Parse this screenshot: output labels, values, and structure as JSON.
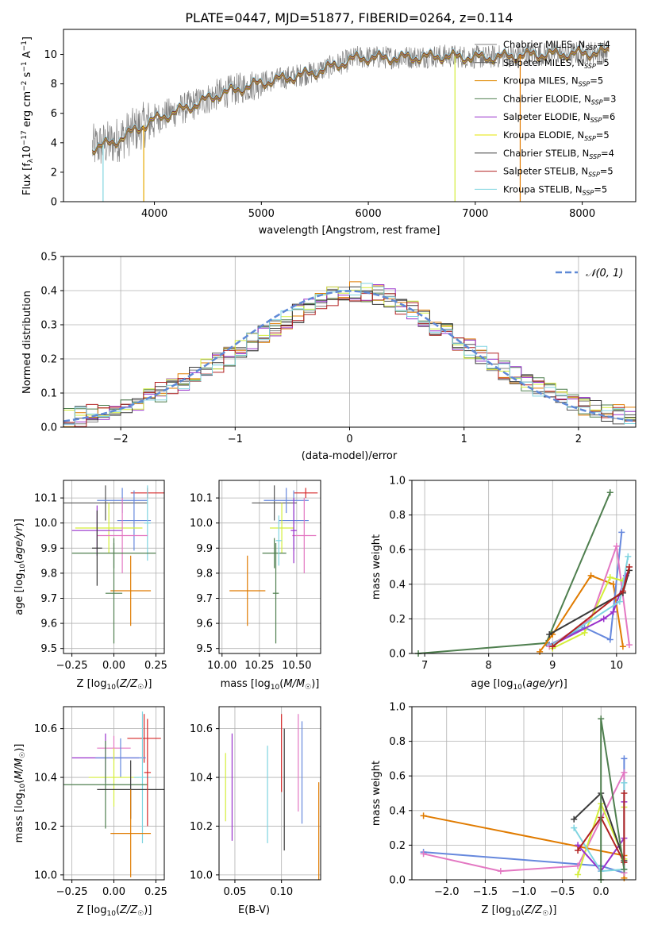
{
  "chart_data": [
    {
      "id": "spectrum",
      "type": "line",
      "title": "PLATE=0447, MJD=51877, FIBERID=0264, z=0.114",
      "xlabel": "wavelength [Angstrom, rest frame]",
      "ylabel": "Flux [f_λ 10^-17 erg cm^-2 s^-1 A^-1]",
      "xlim": [
        3150,
        8500
      ],
      "ylim": [
        0,
        11.7
      ],
      "xticks": [
        "4000",
        "5000",
        "6000",
        "7000",
        "8000"
      ],
      "yticks": [
        "0",
        "2",
        "4",
        "6",
        "8",
        "10"
      ],
      "grid": false,
      "legend_position": "right",
      "data_envelope": {
        "x": [
          3420,
          3600,
          4000,
          4300,
          4600,
          5000,
          5500,
          5900,
          6300,
          6700,
          7100,
          7500,
          8000,
          8250
        ],
        "y": [
          3.7,
          4.0,
          5.6,
          6.4,
          7.3,
          8.1,
          8.8,
          9.8,
          9.8,
          9.9,
          9.8,
          10.0,
          10.1,
          10.2
        ]
      },
      "series": [
        {
          "name": "Chabrier MILES, N_SSP=4",
          "color": "#808080"
        },
        {
          "name": "Salpeter MILES, N_SSP=5",
          "color": "#555555"
        },
        {
          "name": "Kroupa MILES, N_SSP=5",
          "color": "#e08a00"
        },
        {
          "name": "Chabrier ELODIE, N_SSP=3",
          "color": "#4f7f4f"
        },
        {
          "name": "Salpeter ELODIE, N_SSP=6",
          "color": "#9932cc"
        },
        {
          "name": "Kroupa ELODIE, N_SSP=5",
          "color": "#e6e600"
        },
        {
          "name": "Chabrier STELIB, N_SSP=4",
          "color": "#3a3a3a"
        },
        {
          "name": "Salpeter STELIB, N_SSP=5",
          "color": "#b22222"
        },
        {
          "name": "Kroupa STELIB, N_SSP=5",
          "color": "#7fd4e0"
        }
      ]
    },
    {
      "id": "residuals",
      "type": "histogram",
      "xlabel": "(data-model)/error",
      "ylabel": "Normed distribution",
      "xlim": [
        -2.5,
        2.5
      ],
      "ylim": [
        0,
        0.5
      ],
      "xticks": [
        "−2",
        "−1",
        "0",
        "1",
        "2"
      ],
      "yticks": [
        "0.0",
        "0.1",
        "0.2",
        "0.3",
        "0.4",
        "0.5"
      ],
      "grid": true,
      "legend_position": "top-right",
      "legend": "𝒩(0, 1)",
      "bin_edges_start": -2.5,
      "bin_width": 0.1,
      "reference_values": [
        0.027,
        0.031,
        0.037,
        0.045,
        0.053,
        0.063,
        0.075,
        0.088,
        0.102,
        0.117,
        0.134,
        0.151,
        0.17,
        0.189,
        0.209,
        0.23,
        0.251,
        0.272,
        0.293,
        0.313,
        0.332,
        0.35,
        0.367,
        0.381,
        0.392,
        0.397,
        0.396,
        0.389,
        0.377,
        0.361,
        0.342,
        0.321,
        0.299,
        0.277,
        0.254,
        0.232,
        0.21,
        0.189,
        0.169,
        0.15,
        0.133,
        0.116,
        0.101,
        0.087,
        0.074,
        0.063,
        0.053,
        0.044,
        0.036,
        0.03
      ],
      "series_colors": [
        "#808080",
        "#555555",
        "#e07b00",
        "#4f7f4f",
        "#9932cc",
        "#d4ee3a",
        "#3a3a3a",
        "#b22222",
        "#7fd4e0"
      ]
    },
    {
      "id": "age_vs_Z",
      "type": "errorbar",
      "xlabel": "Z [log10(Z/Z☉)]",
      "ylabel": "age  [log10(age/yr)]",
      "xlim": [
        -0.3,
        0.3
      ],
      "ylim": [
        9.48,
        10.17
      ],
      "xticks": [
        "−0.25",
        "0.00",
        "0.25"
      ],
      "yticks": [
        "9.5",
        "9.6",
        "9.7",
        "9.8",
        "9.9",
        "10.0",
        "10.1"
      ],
      "grid": true,
      "points": [
        {
          "x": -0.05,
          "y": 10.08,
          "xerr": 0.25,
          "yerr": 0.07,
          "color": "#555555"
        },
        {
          "x": 0.2,
          "y": 10.12,
          "xerr": 0.1,
          "yerr": 0.02,
          "color": "#d62728"
        },
        {
          "x": 0.05,
          "y": 10.09,
          "xerr": 0.15,
          "yerr": 0.05,
          "color": "#6688dd"
        },
        {
          "x": 0.12,
          "y": 10.01,
          "xerr": 0.1,
          "yerr": 0.12,
          "color": "#6688dd"
        },
        {
          "x": -0.03,
          "y": 9.98,
          "xerr": 0.2,
          "yerr": 0.1,
          "color": "#d4ee3a"
        },
        {
          "x": 0.2,
          "y": 10.0,
          "xerr": 0.02,
          "yerr": 0.15,
          "color": "#7fd4e0"
        },
        {
          "x": -0.1,
          "y": 9.97,
          "xerr": 0.15,
          "yerr": 0.1,
          "color": "#9932cc"
        },
        {
          "x": 0.05,
          "y": 9.95,
          "xerr": 0.15,
          "yerr": 0.15,
          "color": "#e377c2"
        },
        {
          "x": 0.0,
          "y": 9.88,
          "xerr": 0.25,
          "yerr": 0.06,
          "color": "#4f7f4f"
        },
        {
          "x": 0.1,
          "y": 9.73,
          "xerr": 0.12,
          "yerr": 0.14,
          "color": "#e07b00"
        },
        {
          "x": -0.1,
          "y": 9.9,
          "xerr": 0.03,
          "yerr": 0.15,
          "color": "#3a3a3a"
        },
        {
          "x": 0.0,
          "y": 9.72,
          "xerr": 0.05,
          "yerr": 0.2,
          "color": "#4f7f4f"
        }
      ]
    },
    {
      "id": "age_vs_mass",
      "type": "errorbar",
      "xlabel": "mass [log10(M/M☉)]",
      "ylabel": "",
      "xlim": [
        9.98,
        10.66
      ],
      "ylim": [
        9.48,
        10.17
      ],
      "xticks": [
        "10.00",
        "10.25",
        "10.50"
      ],
      "yticks": [
        "9.5",
        "9.6",
        "9.7",
        "9.8",
        "9.9",
        "10.0",
        "10.1"
      ],
      "grid": true,
      "points": [
        {
          "x": 10.35,
          "y": 10.08,
          "xerr": 0.15,
          "yerr": 0.07,
          "color": "#555555"
        },
        {
          "x": 10.56,
          "y": 10.12,
          "xerr": 0.08,
          "yerr": 0.02,
          "color": "#d62728"
        },
        {
          "x": 10.43,
          "y": 10.09,
          "xerr": 0.15,
          "yerr": 0.05,
          "color": "#6688dd"
        },
        {
          "x": 10.48,
          "y": 10.01,
          "xerr": 0.1,
          "yerr": 0.12,
          "color": "#6688dd"
        },
        {
          "x": 10.4,
          "y": 9.98,
          "xerr": 0.08,
          "yerr": 0.1,
          "color": "#d4ee3a"
        },
        {
          "x": 10.55,
          "y": 9.95,
          "xerr": 0.08,
          "yerr": 0.15,
          "color": "#e377c2"
        },
        {
          "x": 10.48,
          "y": 9.97,
          "xerr": 0.02,
          "yerr": 0.13,
          "color": "#9932cc"
        },
        {
          "x": 10.35,
          "y": 9.88,
          "xerr": 0.08,
          "yerr": 0.06,
          "color": "#4f7f4f"
        },
        {
          "x": 10.17,
          "y": 9.73,
          "xerr": 0.12,
          "yerr": 0.14,
          "color": "#e07b00"
        },
        {
          "x": 10.38,
          "y": 9.93,
          "xerr": 0.02,
          "yerr": 0.1,
          "color": "#7fd4e0"
        },
        {
          "x": 10.36,
          "y": 9.72,
          "xerr": 0.02,
          "yerr": 0.2,
          "color": "#4f7f4f"
        }
      ]
    },
    {
      "id": "massweight_vs_age",
      "type": "line",
      "xlabel": "age  [log10(age/yr)]",
      "ylabel": "mass weight",
      "xlim": [
        6.8,
        10.3
      ],
      "ylim": [
        0,
        1
      ],
      "xticks": [
        "7",
        "8",
        "9",
        "10"
      ],
      "yticks": [
        "0.0",
        "0.2",
        "0.4",
        "0.6",
        "0.8",
        "1.0"
      ],
      "grid": true,
      "series": [
        {
          "color": "#4f7f4f",
          "x": [
            6.9,
            8.9,
            9.9
          ],
          "y": [
            0.0,
            0.06,
            0.93
          ]
        },
        {
          "color": "#e07b00",
          "x": [
            8.8,
            9.0,
            9.6,
            9.95,
            10.1
          ],
          "y": [
            0.01,
            0.11,
            0.45,
            0.4,
            0.04
          ]
        },
        {
          "color": "#6688dd",
          "x": [
            8.95,
            9.5,
            9.9,
            10.08
          ],
          "y": [
            0.05,
            0.15,
            0.08,
            0.7
          ]
        },
        {
          "color": "#e377c2",
          "x": [
            8.95,
            9.6,
            10.0,
            10.2
          ],
          "y": [
            0.04,
            0.2,
            0.62,
            0.05
          ]
        },
        {
          "color": "#d4ee3a",
          "x": [
            9.0,
            9.5,
            9.9,
            10.1
          ],
          "y": [
            0.03,
            0.12,
            0.44,
            0.42
          ]
        },
        {
          "color": "#9932cc",
          "x": [
            9.0,
            9.8,
            9.95,
            10.15
          ],
          "y": [
            0.05,
            0.2,
            0.24,
            0.45
          ]
        },
        {
          "color": "#7fd4e0",
          "x": [
            9.0,
            10.05,
            10.18
          ],
          "y": [
            0.05,
            0.3,
            0.56
          ]
        },
        {
          "color": "#3a3a3a",
          "x": [
            8.95,
            10.1,
            10.2
          ],
          "y": [
            0.11,
            0.35,
            0.48
          ]
        },
        {
          "color": "#b22222",
          "x": [
            9.0,
            10.1,
            10.2
          ],
          "y": [
            0.04,
            0.36,
            0.5
          ]
        }
      ]
    },
    {
      "id": "mass_vs_Z",
      "type": "errorbar",
      "xlabel": "Z [log10(Z/Z☉)]",
      "ylabel": "mass [log10(M/M☉)]",
      "xlim": [
        -0.3,
        0.3
      ],
      "ylim": [
        9.98,
        10.69
      ],
      "xticks": [
        "−0.25",
        "0.00",
        "0.25"
      ],
      "yticks": [
        "10.0",
        "10.2",
        "10.4",
        "10.6"
      ],
      "grid": true,
      "points": [
        {
          "x": 0.18,
          "y": 10.56,
          "xerr": 0.1,
          "yerr": 0.1,
          "color": "#d62728"
        },
        {
          "x": 0.0,
          "y": 10.52,
          "xerr": 0.1,
          "yerr": 0.05,
          "color": "#e377c2"
        },
        {
          "x": -0.05,
          "y": 10.48,
          "xerr": 0.2,
          "yerr": 0.1,
          "color": "#9932cc"
        },
        {
          "x": 0.04,
          "y": 10.48,
          "xerr": 0.15,
          "yerr": 0.08,
          "color": "#6688dd"
        },
        {
          "x": 0.0,
          "y": 10.4,
          "xerr": 0.15,
          "yerr": 0.12,
          "color": "#d4ee3a"
        },
        {
          "x": 0.17,
          "y": 10.4,
          "xerr": 0.05,
          "yerr": 0.27,
          "color": "#7fd4e0"
        },
        {
          "x": -0.05,
          "y": 10.37,
          "xerr": 0.25,
          "yerr": 0.18,
          "color": "#4f7f4f"
        },
        {
          "x": 0.1,
          "y": 10.35,
          "xerr": 0.2,
          "yerr": 0.12,
          "color": "#3a3a3a"
        },
        {
          "x": 0.1,
          "y": 10.17,
          "xerr": 0.12,
          "yerr": 0.18,
          "color": "#e07b00"
        },
        {
          "x": 0.2,
          "y": 10.42,
          "xerr": 0.02,
          "yerr": 0.22,
          "color": "#d62728"
        }
      ]
    },
    {
      "id": "mass_vs_ebv",
      "type": "errorbar",
      "xlabel": "E(B-V)",
      "ylabel": "",
      "xlim": [
        0.033,
        0.142
      ],
      "ylim": [
        9.98,
        10.69
      ],
      "xticks": [
        "0.05",
        "0.10"
      ],
      "yticks": [
        "10.0",
        "10.2",
        "10.4",
        "10.6"
      ],
      "grid": true,
      "points": [
        {
          "x": 0.04,
          "y": 10.36,
          "yerr": 0.14,
          "color": "#d4ee3a"
        },
        {
          "x": 0.047,
          "y": 10.36,
          "yerr": 0.22,
          "color": "#9932cc"
        },
        {
          "x": 0.085,
          "y": 10.33,
          "yerr": 0.2,
          "color": "#7fd4e0"
        },
        {
          "x": 0.1,
          "y": 10.5,
          "yerr": 0.16,
          "color": "#d62728"
        },
        {
          "x": 0.103,
          "y": 10.35,
          "yerr": 0.25,
          "color": "#3a3a3a"
        },
        {
          "x": 0.118,
          "y": 10.46,
          "yerr": 0.2,
          "color": "#e377c2"
        },
        {
          "x": 0.122,
          "y": 10.42,
          "yerr": 0.21,
          "color": "#6688dd"
        },
        {
          "x": 0.14,
          "y": 10.18,
          "yerr": 0.2,
          "color": "#e07b00"
        }
      ]
    },
    {
      "id": "massweight_vs_Z",
      "type": "line",
      "xlabel": "Z [log10(Z/Z☉)]",
      "ylabel": "mass weight",
      "xlim": [
        -2.45,
        0.45
      ],
      "ylim": [
        0,
        1
      ],
      "xticks": [
        "−2.0",
        "−1.5",
        "−1.0",
        "−0.5",
        "0.0"
      ],
      "yticks": [
        "0.0",
        "0.2",
        "0.4",
        "0.6",
        "0.8",
        "1.0"
      ],
      "grid": true,
      "series": [
        {
          "color": "#e07b00",
          "x": [
            -2.3,
            0.3,
            0.3
          ],
          "y": [
            0.37,
            0.14,
            0.01
          ]
        },
        {
          "color": "#6688dd",
          "x": [
            -2.3,
            0.0,
            0.3,
            0.3
          ],
          "y": [
            0.16,
            0.08,
            0.04,
            0.7
          ]
        },
        {
          "color": "#e377c2",
          "x": [
            -2.3,
            -1.3,
            -0.3,
            0.3,
            0.3
          ],
          "y": [
            0.15,
            0.05,
            0.08,
            0.62,
            0.04
          ]
        },
        {
          "color": "#d4ee3a",
          "x": [
            -0.3,
            0.0,
            0.3,
            0.3
          ],
          "y": [
            0.03,
            0.44,
            0.12,
            0.42
          ]
        },
        {
          "color": "#9932cc",
          "x": [
            -0.3,
            0.0,
            0.3,
            0.3
          ],
          "y": [
            0.2,
            0.05,
            0.24,
            0.45
          ]
        },
        {
          "color": "#7fd4e0",
          "x": [
            -0.35,
            0.0,
            0.3,
            0.3
          ],
          "y": [
            0.3,
            0.05,
            0.06,
            0.56
          ]
        },
        {
          "color": "#3a3a3a",
          "x": [
            -0.35,
            0.0,
            0.3
          ],
          "y": [
            0.35,
            0.5,
            0.11
          ]
        },
        {
          "color": "#b22222",
          "x": [
            -0.3,
            0.0,
            0.3,
            0.3
          ],
          "y": [
            0.17,
            0.36,
            0.1,
            0.5
          ]
        },
        {
          "color": "#4f7f4f",
          "x": [
            0.0,
            0.0,
            0.3
          ],
          "y": [
            0.0,
            0.93,
            0.06
          ]
        }
      ]
    }
  ]
}
